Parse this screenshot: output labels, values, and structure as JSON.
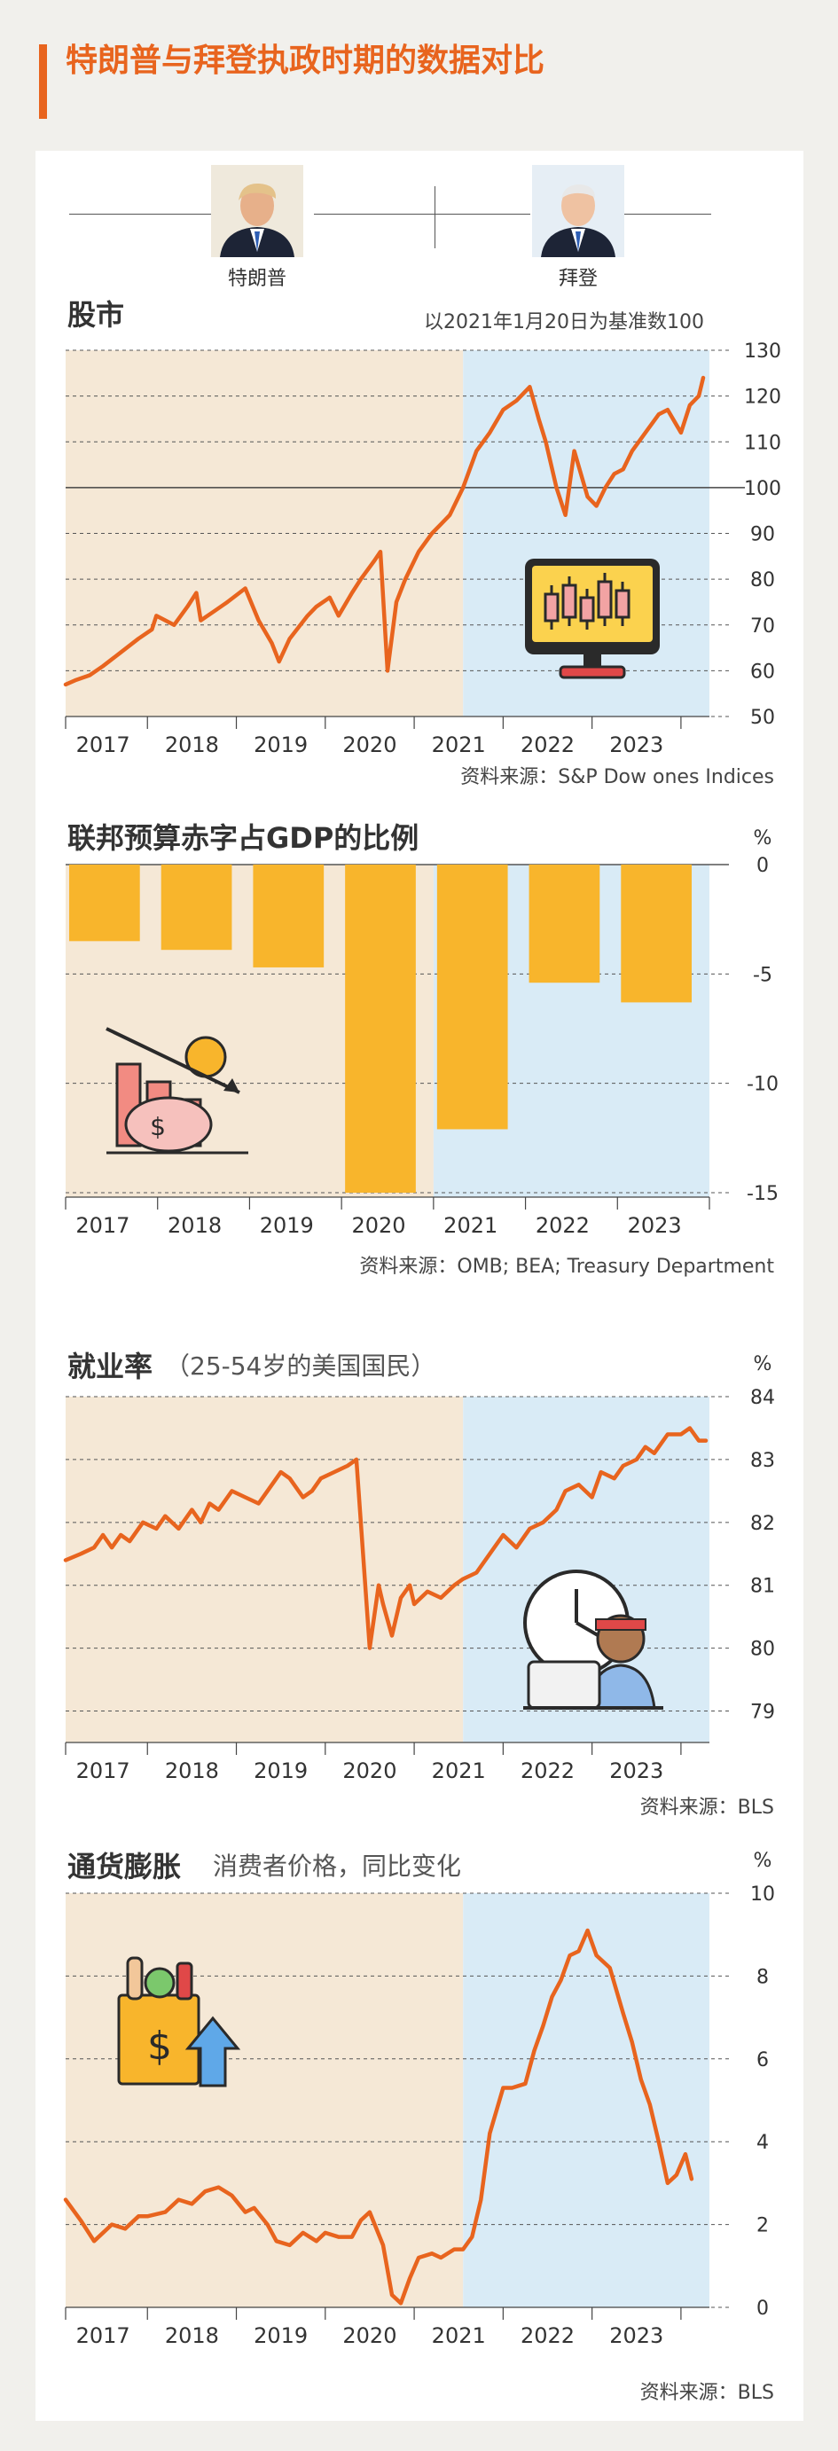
{
  "title": "特朗普与拜登执政时期的数据对比",
  "presidents": {
    "trump": "特朗普",
    "biden": "拜登"
  },
  "colors": {
    "accent": "#e8641e",
    "trump_bg": "#f5e8d6",
    "biden_bg": "#d9ebf6",
    "bar": "#f8b52c",
    "line": "#e8641e"
  },
  "stock": {
    "title": "股市",
    "note": "以2021年1月20日为基准数100",
    "source": "资料来源：S&P Dow ones Indices",
    "icon": "monitor-candlestick-icon"
  },
  "deficit": {
    "title": "联邦预算赤字占GDP的比例",
    "unit": "%",
    "source": "资料来源：OMB; BEA; Treasury Department",
    "icon": "declining-finance-icon"
  },
  "employment": {
    "title": "就业率",
    "subtitle": "（25-54岁的美国国民）",
    "unit": "%",
    "source": "资料来源：BLS",
    "icon": "worker-clock-icon"
  },
  "inflation": {
    "title": "通货膨胀",
    "subtitle": "消费者价格，同比变化",
    "unit": "%",
    "source": "资料来源：BLS",
    "icon": "grocery-price-up-icon"
  },
  "chart_data": [
    {
      "type": "line",
      "title": "股市",
      "x_unit": "year",
      "split_x": 2021.05,
      "xlim": [
        2016.58,
        2023.82
      ],
      "ylim": [
        50,
        130
      ],
      "yticks": [
        50,
        60,
        70,
        80,
        90,
        100,
        110,
        120,
        130
      ],
      "xticks": [
        "2017",
        "2018",
        "2019",
        "2020",
        "2021",
        "2022",
        "2023"
      ],
      "reference_line": 100,
      "x": [
        2016.58,
        2016.7,
        2016.85,
        2017.0,
        2017.2,
        2017.4,
        2017.55,
        2017.6,
        2017.8,
        2017.95,
        2018.05,
        2018.1,
        2018.25,
        2018.4,
        2018.6,
        2018.75,
        2018.9,
        2018.98,
        2019.1,
        2019.3,
        2019.4,
        2019.55,
        2019.65,
        2019.8,
        2019.9,
        2020.05,
        2020.12,
        2020.2,
        2020.3,
        2020.4,
        2020.55,
        2020.7,
        2020.8,
        2020.9,
        2021.05,
        2021.2,
        2021.35,
        2021.5,
        2021.65,
        2021.8,
        2021.9,
        2021.98,
        2022.1,
        2022.2,
        2022.3,
        2022.45,
        2022.55,
        2022.65,
        2022.75,
        2022.85,
        2022.95,
        2023.1,
        2023.25,
        2023.35,
        2023.5,
        2023.6,
        2023.7,
        2023.75
      ],
      "y": [
        57,
        58,
        59,
        61,
        64,
        67,
        69,
        72,
        70,
        74,
        77,
        71,
        73,
        75,
        78,
        71,
        66,
        62,
        67,
        72,
        74,
        76,
        72,
        77,
        80,
        84,
        86,
        60,
        75,
        80,
        86,
        90,
        92,
        94,
        100,
        108,
        112,
        117,
        119,
        122,
        115,
        110,
        100,
        94,
        108,
        98,
        96,
        100,
        103,
        104,
        108,
        112,
        116,
        117,
        112,
        118,
        120,
        124
      ]
    },
    {
      "type": "bar",
      "title": "联邦预算赤字占GDP的比例",
      "categories": [
        "2017",
        "2018",
        "2019",
        "2020",
        "2021",
        "2022",
        "2023"
      ],
      "values": [
        -3.5,
        -3.9,
        -4.7,
        -15.0,
        -12.1,
        -5.4,
        -6.3
      ],
      "ylim": [
        -15,
        0
      ],
      "yticks": [
        0,
        -5,
        -10,
        -15
      ],
      "split_after": "2020"
    },
    {
      "type": "line",
      "title": "就业率",
      "split_x": 2021.05,
      "xlim": [
        2016.58,
        2023.82
      ],
      "ylim": [
        78.5,
        84
      ],
      "yticks": [
        79,
        80,
        81,
        82,
        83,
        84
      ],
      "xticks": [
        "2017",
        "2018",
        "2019",
        "2020",
        "2021",
        "2022",
        "2023"
      ],
      "x": [
        2016.58,
        2016.75,
        2016.9,
        2017.0,
        2017.1,
        2017.2,
        2017.3,
        2017.45,
        2017.6,
        2017.7,
        2017.85,
        2018.0,
        2018.1,
        2018.2,
        2018.3,
        2018.45,
        2018.6,
        2018.75,
        2018.85,
        2019.0,
        2019.1,
        2019.25,
        2019.35,
        2019.45,
        2019.6,
        2019.75,
        2019.85,
        2020.0,
        2020.1,
        2020.15,
        2020.25,
        2020.35,
        2020.45,
        2020.5,
        2020.65,
        2020.8,
        2020.95,
        2021.05,
        2021.2,
        2021.35,
        2021.5,
        2021.65,
        2021.8,
        2021.95,
        2022.1,
        2022.2,
        2022.35,
        2022.5,
        2022.6,
        2022.75,
        2022.85,
        2023.0,
        2023.1,
        2023.2,
        2023.35,
        2023.5,
        2023.6,
        2023.7,
        2023.78
      ],
      "y": [
        81.4,
        81.5,
        81.6,
        81.8,
        81.6,
        81.8,
        81.7,
        82.0,
        81.9,
        82.1,
        81.9,
        82.2,
        82.0,
        82.3,
        82.2,
        82.5,
        82.4,
        82.3,
        82.5,
        82.8,
        82.7,
        82.4,
        82.5,
        82.7,
        82.8,
        82.9,
        83.0,
        80.0,
        81.0,
        80.7,
        80.2,
        80.8,
        81.0,
        80.7,
        80.9,
        80.8,
        81.0,
        81.1,
        81.2,
        81.5,
        81.8,
        81.6,
        81.9,
        82.0,
        82.2,
        82.5,
        82.6,
        82.4,
        82.8,
        82.7,
        82.9,
        83.0,
        83.2,
        83.1,
        83.4,
        83.4,
        83.5,
        83.3,
        83.3
      ]
    },
    {
      "type": "line",
      "title": "通货膨胀",
      "split_x": 2021.05,
      "xlim": [
        2016.58,
        2023.82
      ],
      "ylim": [
        0,
        10
      ],
      "yticks": [
        0,
        2,
        4,
        6,
        8,
        10
      ],
      "xticks": [
        "2017",
        "2018",
        "2019",
        "2020",
        "2021",
        "2022",
        "2023"
      ],
      "x": [
        2016.58,
        2016.75,
        2016.9,
        2017.1,
        2017.25,
        2017.4,
        2017.5,
        2017.7,
        2017.85,
        2018.0,
        2018.15,
        2018.3,
        2018.45,
        2018.6,
        2018.7,
        2018.85,
        2018.95,
        2019.1,
        2019.25,
        2019.4,
        2019.5,
        2019.65,
        2019.8,
        2019.9,
        2020.0,
        2020.15,
        2020.25,
        2020.35,
        2020.45,
        2020.55,
        2020.7,
        2020.8,
        2020.95,
        2021.05,
        2021.15,
        2021.25,
        2021.35,
        2021.5,
        2021.6,
        2021.75,
        2021.85,
        2021.95,
        2022.05,
        2022.15,
        2022.25,
        2022.35,
        2022.45,
        2022.55,
        2022.7,
        2022.85,
        2022.95,
        2023.05,
        2023.15,
        2023.25,
        2023.35,
        2023.45,
        2023.55,
        2023.62
      ],
      "y": [
        2.6,
        2.1,
        1.6,
        2.0,
        1.9,
        2.2,
        2.2,
        2.3,
        2.6,
        2.5,
        2.8,
        2.9,
        2.7,
        2.3,
        2.4,
        2.0,
        1.6,
        1.5,
        1.8,
        1.6,
        1.8,
        1.7,
        1.7,
        2.1,
        2.3,
        1.5,
        0.3,
        0.1,
        0.7,
        1.2,
        1.3,
        1.2,
        1.4,
        1.4,
        1.7,
        2.6,
        4.2,
        5.3,
        5.3,
        5.4,
        6.2,
        6.8,
        7.5,
        7.9,
        8.5,
        8.6,
        9.1,
        8.5,
        8.2,
        7.1,
        6.4,
        5.5,
        4.9,
        4.0,
        3.0,
        3.2,
        3.7,
        3.1
      ]
    }
  ]
}
